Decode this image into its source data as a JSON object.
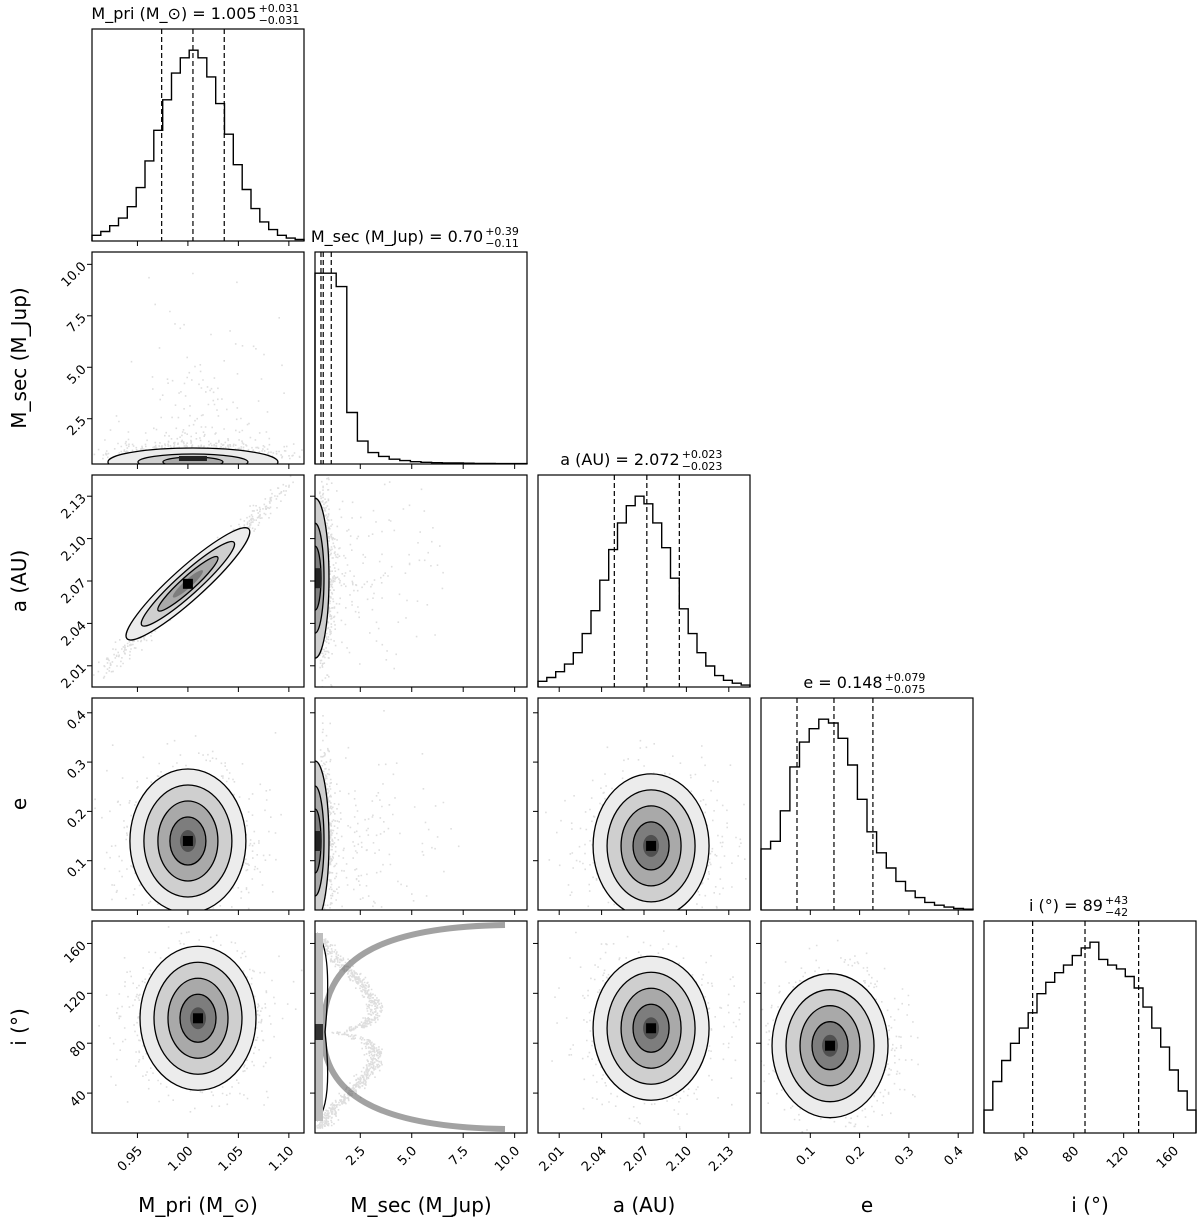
{
  "chart_data": {
    "type": "corner",
    "parameters": [
      {
        "key": "mpri",
        "axis_label": "M_pri (M_⊙)",
        "title_name": "M_pri (M_⊙)",
        "median": "1.005",
        "err_plus": "+0.031",
        "err_minus": "−0.031",
        "range": [
          0.905,
          1.115
        ],
        "ticks": [
          0.95,
          1.0,
          1.05,
          1.1
        ],
        "tick_labels": [
          "0.95",
          "1.00",
          "1.05",
          "1.10"
        ],
        "mean": 1.005,
        "sigma": 0.031,
        "quantiles": [
          0.974,
          1.005,
          1.036
        ]
      },
      {
        "key": "msec",
        "axis_label": "M_sec (M_Jup)",
        "title_name": "M_sec (M_Jup)",
        "median": "0.70",
        "err_plus": "+0.39",
        "err_minus": "−0.11",
        "range": [
          0.3,
          10.6
        ],
        "ticks": [
          2.5,
          5.0,
          7.5,
          10.0
        ],
        "tick_labels": [
          "2.5",
          "5.0",
          "7.5",
          "10.0"
        ],
        "quantiles": [
          0.59,
          0.7,
          1.09
        ]
      },
      {
        "key": "a",
        "axis_label": "a (AU)",
        "title_name": "a (AU)",
        "median": "2.072",
        "err_plus": "+0.023",
        "err_minus": "−0.023",
        "range": [
          1.995,
          2.145
        ],
        "ticks": [
          2.01,
          2.04,
          2.07,
          2.1,
          2.13
        ],
        "tick_labels": [
          "2.01",
          "2.04",
          "2.07",
          "2.10",
          "2.13"
        ],
        "mean": 2.072,
        "sigma": 0.023,
        "quantiles": [
          2.049,
          2.072,
          2.095
        ]
      },
      {
        "key": "e",
        "axis_label": "e",
        "title_name": "e",
        "median": "0.148",
        "err_plus": "+0.079",
        "err_minus": "−0.075",
        "range": [
          0.0,
          0.43
        ],
        "ticks": [
          0.1,
          0.2,
          0.3,
          0.4
        ],
        "tick_labels": [
          "0.1",
          "0.2",
          "0.3",
          "0.4"
        ],
        "quantiles": [
          0.073,
          0.148,
          0.227
        ]
      },
      {
        "key": "i",
        "axis_label": "i (°)",
        "title_name": "i (°)",
        "median": "89",
        "err_plus": "+43",
        "err_minus": "−42",
        "range": [
          8,
          178
        ],
        "ticks": [
          40,
          80,
          120,
          160
        ],
        "tick_labels": [
          "40",
          "80",
          "120",
          "160"
        ],
        "quantiles": [
          47,
          89,
          132
        ]
      }
    ],
    "histograms": [
      {
        "param": "mpri",
        "counts": [
          0.03,
          0.05,
          0.08,
          0.12,
          0.18,
          0.28,
          0.42,
          0.58,
          0.74,
          0.88,
          0.96,
          1.0,
          0.96,
          0.86,
          0.72,
          0.56,
          0.4,
          0.27,
          0.17,
          0.1,
          0.06,
          0.03,
          0.015,
          0.008
        ]
      },
      {
        "param": "msec",
        "counts": [
          1.0,
          1.0,
          0.93,
          0.27,
          0.12,
          0.06,
          0.04,
          0.025,
          0.018,
          0.012,
          0.009,
          0.007,
          0.006,
          0.005,
          0.004,
          0.003,
          0.003,
          0.002,
          0.002,
          0.002
        ]
      },
      {
        "param": "a",
        "counts": [
          0.03,
          0.05,
          0.08,
          0.12,
          0.18,
          0.28,
          0.4,
          0.56,
          0.72,
          0.86,
          0.95,
          1.0,
          0.96,
          0.86,
          0.73,
          0.57,
          0.41,
          0.28,
          0.18,
          0.11,
          0.06,
          0.035,
          0.02,
          0.01
        ]
      },
      {
        "param": "e",
        "counts": [
          0.32,
          0.36,
          0.52,
          0.75,
          0.88,
          0.95,
          1.0,
          0.98,
          0.9,
          0.76,
          0.58,
          0.41,
          0.3,
          0.22,
          0.15,
          0.1,
          0.065,
          0.04,
          0.025,
          0.015,
          0.008,
          0.004
        ]
      },
      {
        "param": "i",
        "counts": [
          0.12,
          0.27,
          0.38,
          0.47,
          0.55,
          0.63,
          0.73,
          0.79,
          0.84,
          0.88,
          0.93,
          0.97,
          1.0,
          0.91,
          0.88,
          0.86,
          0.82,
          0.76,
          0.66,
          0.55,
          0.45,
          0.33,
          0.22,
          0.12
        ]
      }
    ],
    "panels_2d": [
      {
        "x": "mpri",
        "y": "msec",
        "shape": "flat_band",
        "peak": [
          1.005,
          0.7
        ]
      },
      {
        "x": "mpri",
        "y": "a",
        "shape": "correlated",
        "corr": 0.93,
        "peak": [
          1.0,
          2.068
        ]
      },
      {
        "x": "msec",
        "y": "a",
        "shape": "edge",
        "peak": [
          0.6,
          2.072
        ]
      },
      {
        "x": "mpri",
        "y": "e",
        "shape": "gaussian",
        "peak": [
          1.0,
          0.14
        ]
      },
      {
        "x": "msec",
        "y": "e",
        "shape": "edge",
        "peak": [
          0.6,
          0.14
        ]
      },
      {
        "x": "a",
        "y": "e",
        "shape": "gaussian",
        "peak": [
          2.075,
          0.13
        ]
      },
      {
        "x": "mpri",
        "y": "i",
        "shape": "gaussian",
        "peak": [
          1.01,
          100
        ]
      },
      {
        "x": "msec",
        "y": "i",
        "shape": "crescent",
        "peak": [
          0.6,
          89
        ]
      },
      {
        "x": "a",
        "y": "i",
        "shape": "gaussian",
        "peak": [
          2.075,
          92
        ]
      },
      {
        "x": "e",
        "y": "i",
        "shape": "gaussian",
        "peak": [
          0.14,
          78
        ]
      }
    ]
  }
}
